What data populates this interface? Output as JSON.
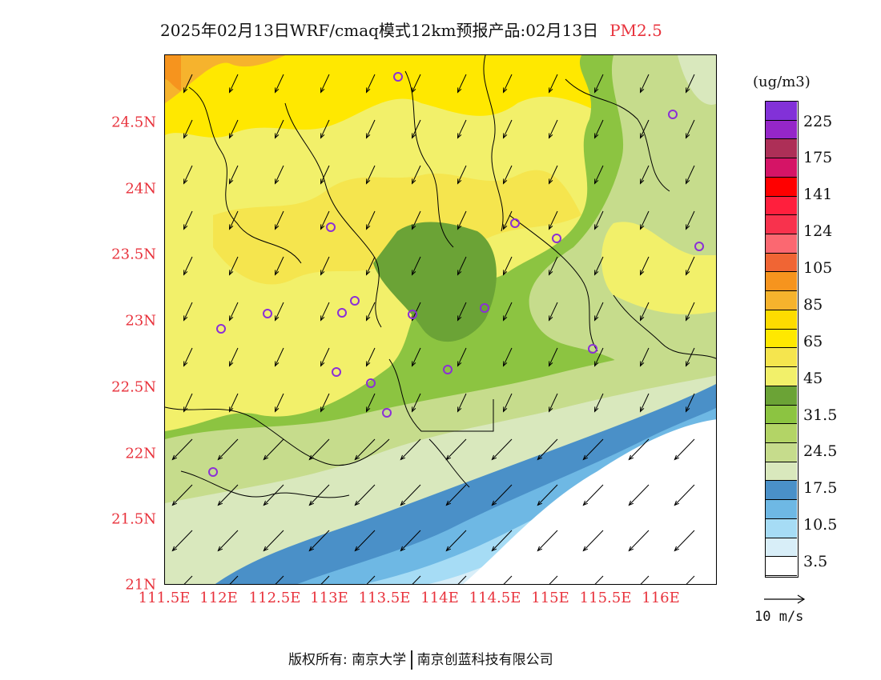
{
  "title": {
    "main": "2025年02月13日WRF/cmaq模式12km预报产品:02月13日",
    "variable": "PM2.5"
  },
  "map": {
    "lat_ticks": [
      "24.5N",
      "24N",
      "23.5N",
      "23N",
      "22.5N",
      "22N",
      "21.5N",
      "21N"
    ],
    "lon_ticks": [
      "111.5E",
      "112E",
      "112.5E",
      "113E",
      "113.5E",
      "114E",
      "114.5E",
      "115E",
      "115.5E",
      "116E"
    ]
  },
  "colorbar": {
    "unit": "(ug/m3)",
    "colors": [
      "#ffffff",
      "#d8eef8",
      "#a6dcf5",
      "#6eb8e4",
      "#4a90c8",
      "#d9e8bd",
      "#c6dc8c",
      "#b3d466",
      "#8cc441",
      "#6ba336",
      "#f2f06a",
      "#f5e54e",
      "#ffe800",
      "#fddc00",
      "#f6b32d",
      "#f6941e",
      "#f06534",
      "#fb6871",
      "#f8324d",
      "#ff1f3d",
      "#ff0000",
      "#d51466",
      "#ad2f57",
      "#9526c8",
      "#8231d8"
    ],
    "labels": [
      "3.5",
      "10.5",
      "17.5",
      "24.5",
      "31.5",
      "45",
      "65",
      "85",
      "105",
      "124",
      "141",
      "175",
      "225"
    ]
  },
  "wind_reference": {
    "label": "10 m/s"
  },
  "footer": {
    "left": "版权所有: 南京大学",
    "right": "南京创蓝科技有限公司"
  },
  "stations": 18
}
